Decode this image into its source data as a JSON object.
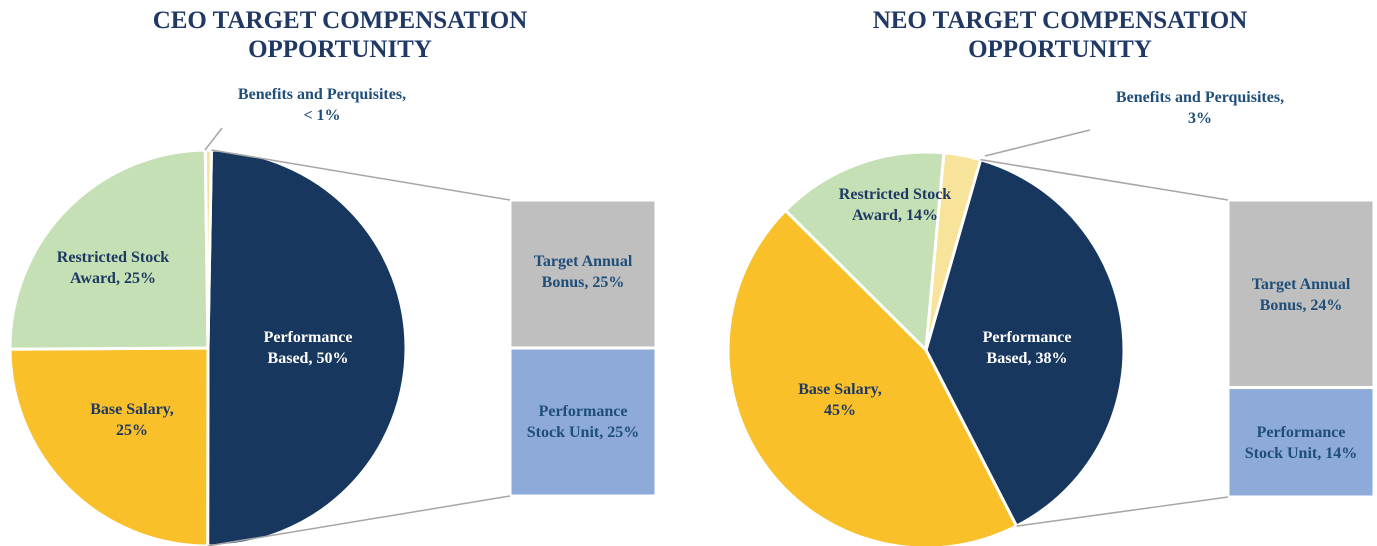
{
  "chart_data": [
    {
      "type": "pie",
      "title": "CEO TARGET COMPENSATION OPPORTUNITY",
      "categories": [
        "Performance Based,",
        "Base Salary,",
        "Restricted Stock Award,",
        "Benefits and Perquisites,"
      ],
      "values": [
        50,
        25,
        25,
        0.5
      ],
      "value_labels": [
        "50%",
        "25%",
        "25%",
        "< 1%"
      ],
      "colors": [
        "#17375e",
        "#f9c02a",
        "#c5e0b4",
        "#f8e39b"
      ],
      "breakdown": {
        "categories": [
          "Target Annual Bonus,",
          "Performance Stock Unit,"
        ],
        "values": [
          25,
          25
        ],
        "value_labels": [
          "25%",
          "25%"
        ],
        "colors": [
          "#bfbfbf",
          "#8eaad8"
        ]
      }
    },
    {
      "type": "pie",
      "title": "NEO TARGET COMPENSATION OPPORTUNITY",
      "categories": [
        "Performance Based,",
        "Base Salary,",
        "Restricted Stock Award,",
        "Benefits and Perquisites,"
      ],
      "values": [
        38,
        45,
        14,
        3
      ],
      "value_labels": [
        "38%",
        "45%",
        "14%",
        "3%"
      ],
      "colors": [
        "#17375e",
        "#f9c02a",
        "#c5e0b4",
        "#f8e39b"
      ],
      "breakdown": {
        "categories": [
          "Target Annual Bonus,",
          "Performance Stock Unit,"
        ],
        "values": [
          24,
          14
        ],
        "value_labels": [
          "24%",
          "14%"
        ],
        "colors": [
          "#bfbfbf",
          "#8eaad8"
        ]
      }
    }
  ]
}
